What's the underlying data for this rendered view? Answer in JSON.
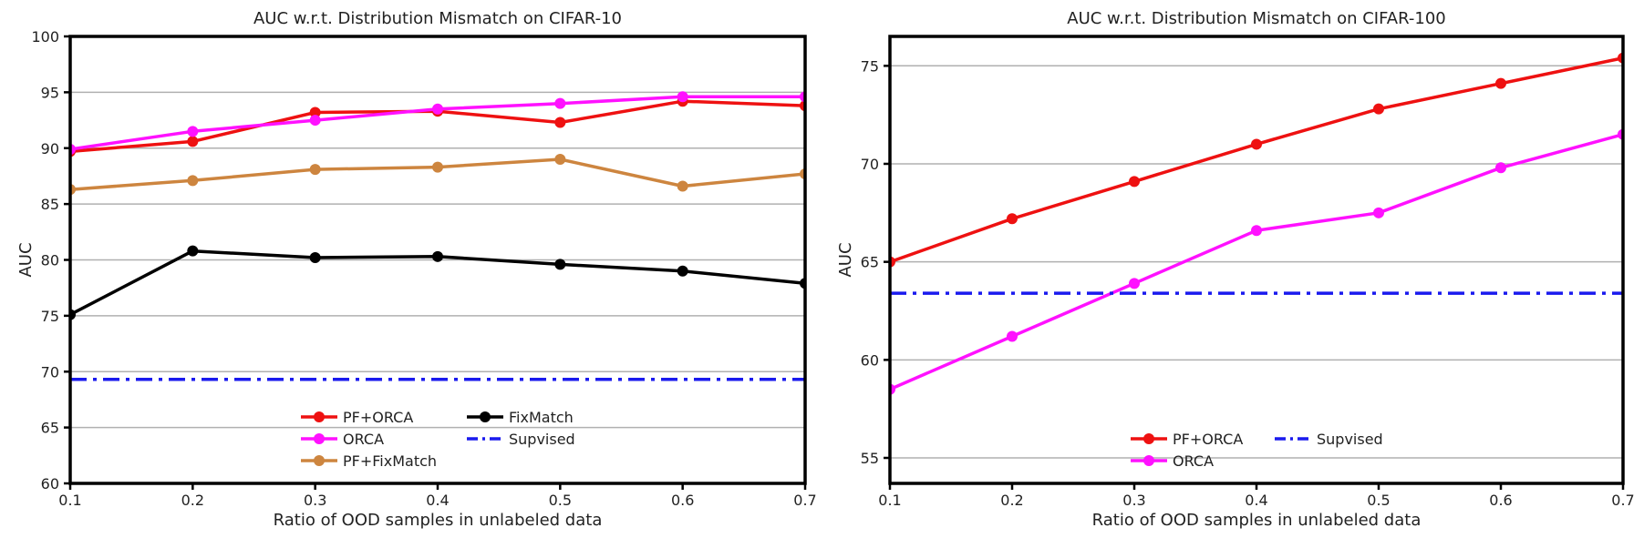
{
  "chart_data": [
    {
      "type": "line",
      "title": "AUC w.r.t. Distribution Mismatch on CIFAR-10",
      "xlabel": "Ratio of OOD samples in unlabeled data",
      "ylabel": "AUC",
      "xlim": [
        0.1,
        0.7
      ],
      "ylim": [
        60,
        100
      ],
      "xticks": [
        0.1,
        0.2,
        0.3,
        0.4,
        0.5,
        0.6,
        0.7
      ],
      "xtick_labels": [
        "0.1",
        "0.2",
        "0.3",
        "0.4",
        "0.5",
        "0.6",
        "0.7"
      ],
      "yticks": [
        60,
        65,
        70,
        75,
        80,
        85,
        90,
        95,
        100
      ],
      "ytick_labels": [
        "60",
        "65",
        "70",
        "75",
        "80",
        "85",
        "90",
        "95",
        "100"
      ],
      "grid": "horizontal",
      "legend_position": "bottom-center",
      "legend_columns": 2,
      "x": [
        0.1,
        0.2,
        0.3,
        0.4,
        0.5,
        0.6,
        0.7
      ],
      "series": [
        {
          "name": "PF+ORCA",
          "color": "#ee1111",
          "style": "solid",
          "marker": true,
          "values": [
            89.7,
            90.6,
            93.2,
            93.3,
            92.3,
            94.2,
            93.8
          ]
        },
        {
          "name": "ORCA",
          "color": "#ff11ff",
          "style": "solid",
          "marker": true,
          "values": [
            89.9,
            91.5,
            92.5,
            93.5,
            94.0,
            94.6,
            94.6
          ]
        },
        {
          "name": "PF+FixMatch",
          "color": "#cd853f",
          "style": "solid",
          "marker": true,
          "values": [
            86.3,
            87.1,
            88.1,
            88.3,
            89.0,
            86.6,
            87.7
          ]
        },
        {
          "name": "FixMatch",
          "color": "#000000",
          "style": "solid",
          "marker": true,
          "values": [
            75.1,
            80.8,
            80.2,
            80.3,
            79.6,
            79.0,
            77.9
          ]
        },
        {
          "name": "Supvised",
          "color": "#1a1aee",
          "style": "dashdot",
          "marker": false,
          "values": [
            69.3,
            69.3,
            69.3,
            69.3,
            69.3,
            69.3,
            69.3
          ]
        }
      ]
    },
    {
      "type": "line",
      "title": "AUC w.r.t. Distribution Mismatch on CIFAR-100",
      "xlabel": "Ratio of OOD samples in unlabeled data",
      "ylabel": "AUC",
      "xlim": [
        0.1,
        0.7
      ],
      "ylim": [
        53.7,
        76.5
      ],
      "xticks": [
        0.1,
        0.2,
        0.3,
        0.4,
        0.5,
        0.6,
        0.7
      ],
      "xtick_labels": [
        "0.1",
        "0.2",
        "0.3",
        "0.4",
        "0.5",
        "0.6",
        "0.7"
      ],
      "yticks": [
        55,
        60,
        65,
        70,
        75
      ],
      "ytick_labels": [
        "55",
        "60",
        "65",
        "70",
        "75"
      ],
      "grid": "horizontal",
      "legend_position": "bottom-center",
      "legend_columns": 2,
      "x": [
        0.1,
        0.2,
        0.3,
        0.4,
        0.5,
        0.6,
        0.7
      ],
      "series": [
        {
          "name": "PF+ORCA",
          "color": "#ee1111",
          "style": "solid",
          "marker": true,
          "values": [
            65.0,
            67.2,
            69.1,
            71.0,
            72.8,
            74.1,
            75.4
          ]
        },
        {
          "name": "ORCA",
          "color": "#ff11ff",
          "style": "solid",
          "marker": true,
          "values": [
            58.5,
            61.2,
            63.9,
            66.6,
            67.5,
            69.8,
            71.5
          ]
        },
        {
          "name": "Supvised",
          "color": "#1a1aee",
          "style": "dashdot",
          "marker": false,
          "values": [
            63.4,
            63.4,
            63.4,
            63.4,
            63.4,
            63.4,
            63.4
          ]
        }
      ]
    }
  ]
}
